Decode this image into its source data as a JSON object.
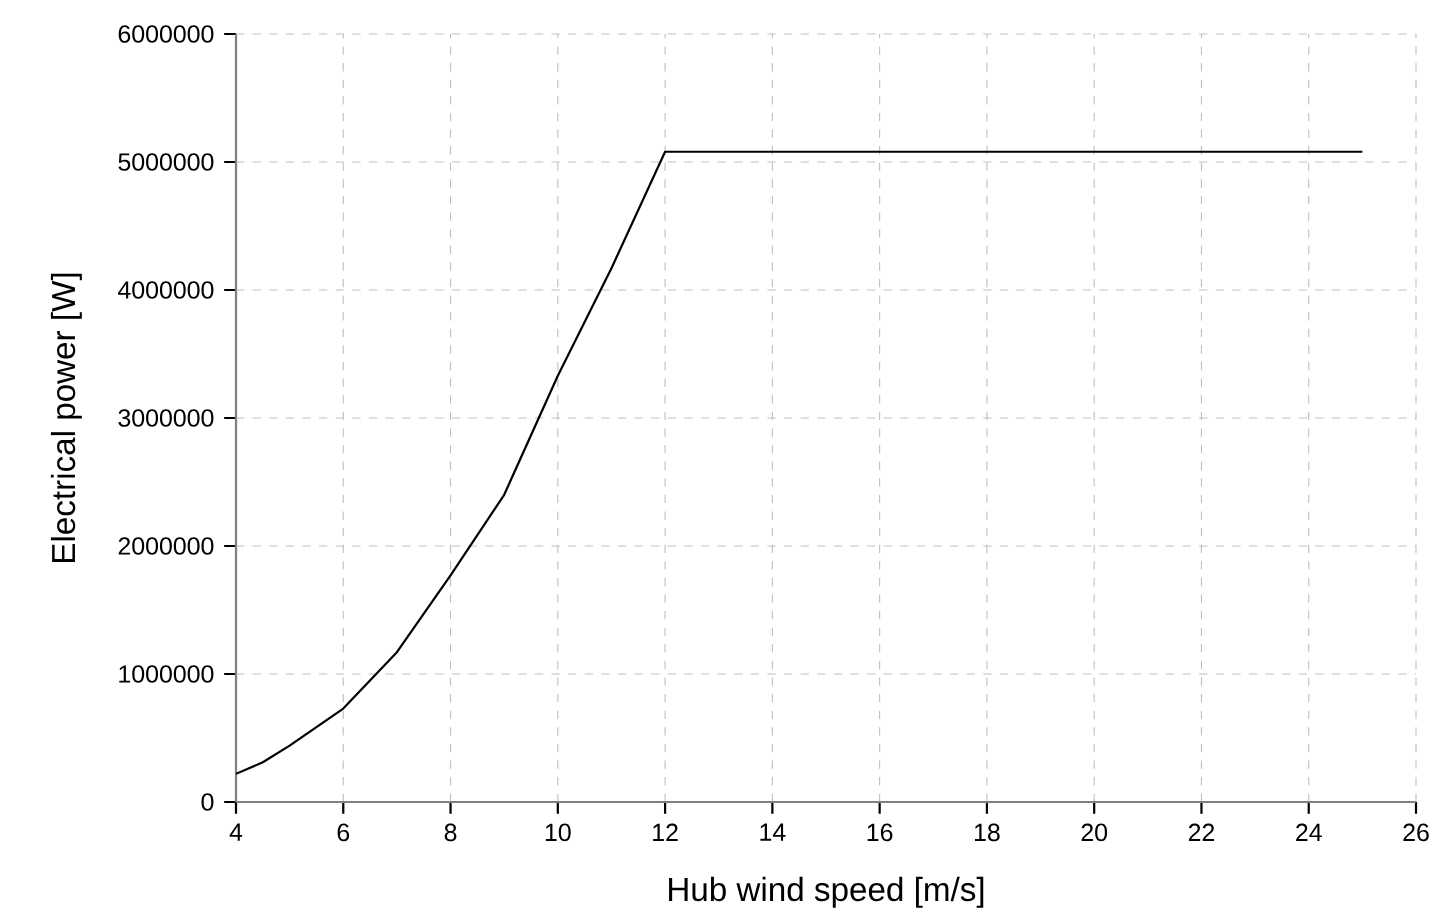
{
  "chart_data": {
    "type": "line",
    "xlabel": "Hub wind speed [m/s]",
    "ylabel": "Electrical power  [W]",
    "x": [
      4,
      4.5,
      5,
      6,
      7,
      8,
      9,
      10,
      11,
      12,
      25
    ],
    "series": [
      {
        "color": "#000000",
        "values": [
          220000,
          310000,
          440000,
          730000,
          1170000,
          1770000,
          2400000,
          3330000,
          4170000,
          5080000,
          5080000
        ]
      }
    ],
    "xlim": [
      4,
      26
    ],
    "xticks": [
      4,
      6,
      8,
      10,
      12,
      14,
      16,
      18,
      20,
      22,
      24,
      26
    ],
    "ylim": [
      0,
      6000000
    ],
    "yticks": [
      0,
      1000000,
      2000000,
      3000000,
      4000000,
      5000000,
      6000000
    ],
    "grid": true,
    "marker": "none",
    "line_style": "solid"
  }
}
